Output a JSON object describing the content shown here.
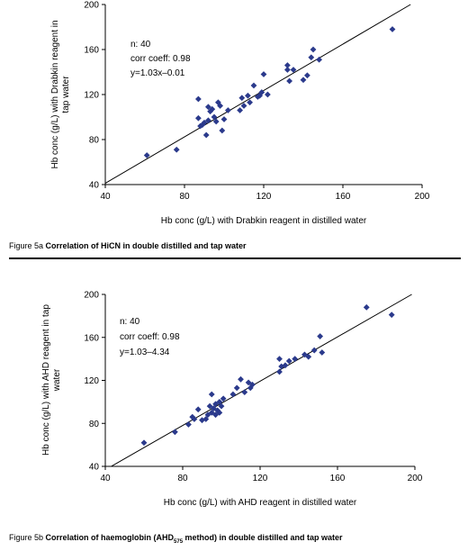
{
  "chart_data": [
    {
      "type": "scatter",
      "xlabel": "Hb conc (g/L) with Drabkin reagent in distilled water",
      "ylabel_lines": [
        "Hb conc (g/L) with Drabkin reagent in",
        "tap water"
      ],
      "xlim": [
        40,
        200
      ],
      "ylim": [
        40,
        200
      ],
      "xticks": [
        "40",
        "80",
        "120",
        "160",
        "200"
      ],
      "yticks": [
        "40",
        "80",
        "120",
        "160",
        "200"
      ],
      "annotations": [
        "n: 40",
        "corr  coeff: 0.98",
        "y=1.03x–0.01"
      ],
      "trendline": {
        "slope": 1.03,
        "intercept": -0.01
      },
      "marker_color": "#2b3a8c",
      "points": [
        [
          61,
          66
        ],
        [
          76,
          71
        ],
        [
          87,
          116
        ],
        [
          87,
          99
        ],
        [
          88,
          92
        ],
        [
          89,
          93
        ],
        [
          90,
          95
        ],
        [
          91,
          84
        ],
        [
          92,
          97
        ],
        [
          92,
          109
        ],
        [
          93,
          105
        ],
        [
          94,
          107
        ],
        [
          95,
          100
        ],
        [
          96,
          96
        ],
        [
          97,
          113
        ],
        [
          98,
          110
        ],
        [
          99,
          88
        ],
        [
          100,
          98
        ],
        [
          102,
          106
        ],
        [
          108,
          106
        ],
        [
          109,
          117
        ],
        [
          110,
          110
        ],
        [
          112,
          119
        ],
        [
          113,
          113
        ],
        [
          115,
          128
        ],
        [
          117,
          118
        ],
        [
          118,
          119
        ],
        [
          119,
          122
        ],
        [
          120,
          138
        ],
        [
          122,
          120
        ],
        [
          132,
          142
        ],
        [
          132,
          146
        ],
        [
          133,
          132
        ],
        [
          135,
          142
        ],
        [
          140,
          133
        ],
        [
          142,
          137
        ],
        [
          144,
          153
        ],
        [
          145,
          160
        ],
        [
          148,
          151
        ],
        [
          185,
          178
        ]
      ]
    },
    {
      "type": "scatter",
      "xlabel": "Hb conc (g/L) with AHD reagent in distilled water",
      "ylabel_lines": [
        "Hb conc (g/L) with AHD reagent in tap",
        "water"
      ],
      "xlim": [
        40,
        200
      ],
      "ylim": [
        40,
        200
      ],
      "xticks": [
        "40",
        "80",
        "120",
        "160",
        "200"
      ],
      "yticks": [
        "40",
        "80",
        "120",
        "160",
        "200"
      ],
      "annotations": [
        "n: 40",
        "corr coeff: 0.98",
        "y=1.03–4.34"
      ],
      "trendline": {
        "slope": 1.03,
        "intercept": -4.34
      },
      "marker_color": "#2b3a8c",
      "points": [
        [
          60,
          62
        ],
        [
          76,
          72
        ],
        [
          83,
          79
        ],
        [
          85,
          86
        ],
        [
          86,
          84
        ],
        [
          88,
          93
        ],
        [
          90,
          83
        ],
        [
          92,
          84
        ],
        [
          93,
          88
        ],
        [
          94,
          96
        ],
        [
          95,
          90
        ],
        [
          95,
          107
        ],
        [
          96,
          94
        ],
        [
          97,
          88
        ],
        [
          97,
          98
        ],
        [
          98,
          92
        ],
        [
          99,
          100
        ],
        [
          99,
          90
        ],
        [
          100,
          96
        ],
        [
          101,
          103
        ],
        [
          106,
          107
        ],
        [
          108,
          113
        ],
        [
          110,
          121
        ],
        [
          112,
          109
        ],
        [
          114,
          118
        ],
        [
          115,
          113
        ],
        [
          116,
          116
        ],
        [
          130,
          128
        ],
        [
          130,
          140
        ],
        [
          131,
          133
        ],
        [
          133,
          134
        ],
        [
          135,
          138
        ],
        [
          138,
          140
        ],
        [
          143,
          144
        ],
        [
          145,
          142
        ],
        [
          148,
          148
        ],
        [
          151,
          161
        ],
        [
          152,
          146
        ],
        [
          175,
          188
        ],
        [
          188,
          181
        ]
      ]
    }
  ],
  "captions": [
    {
      "prefix": "Figure 5a ",
      "bold": "Correlation of HiCN in double distilled and tap water",
      "sub": "",
      "bold_after": ""
    },
    {
      "prefix": "Figure 5b ",
      "bold": "Correlation of haemoglobin (AHD",
      "sub": "575",
      "bold_after": " method) in double distilled and tap water"
    }
  ]
}
